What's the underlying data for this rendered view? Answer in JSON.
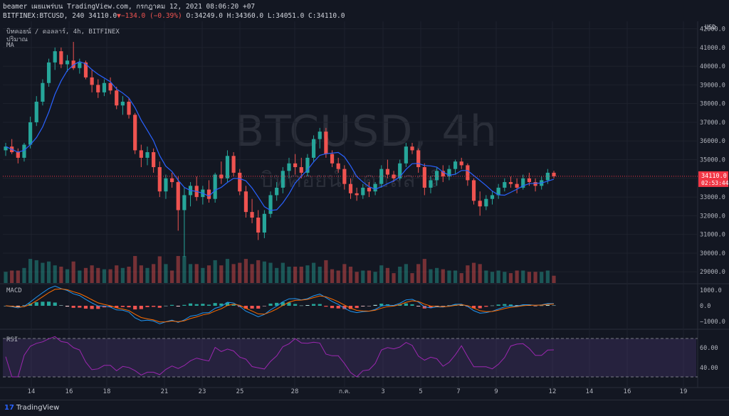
{
  "header": {
    "line1": "beamer เผยแพร่บน TradingView.com, กรกฎาคม 12, 2021 08:06:20 +07",
    "symbol": "BITFINEX:BTCUSD, 240",
    "last": "34110.0",
    "change_arrow": "▼",
    "change": "−134.0 (−0.39%)",
    "ohlc": "O:34249.0 H:34360.0 L:34051.0 C:34110.0"
  },
  "legend": {
    "title": "บิทคอยน์ / ดอลลาร์, 4h, BITFINEX",
    "volume": "ปริมาณ",
    "ma": "MA"
  },
  "watermark": {
    "main": "BTCUSD, 4h",
    "sub": "บิทคอยน์ / ดอลลาร์"
  },
  "price_axis": {
    "currency": "USD",
    "ticks": [
      "42000.0",
      "41000.0",
      "40000.0",
      "39000.0",
      "38000.0",
      "37000.0",
      "36000.0",
      "35000.0",
      "34000.0",
      "33000.0",
      "32000.0",
      "31000.0",
      "30000.0",
      "29000.0"
    ],
    "last_label": "34110.0",
    "countdown": "02:53:44"
  },
  "time_axis": {
    "labels": [
      "14",
      "16",
      "18",
      "21",
      "23",
      "25",
      "28",
      "ก.ค.",
      "3",
      "5",
      "7",
      "9",
      "12",
      "14",
      "16",
      "19"
    ]
  },
  "macd": {
    "label": "MACD",
    "ticks": [
      "1000.0",
      "0.0",
      "−1000.0"
    ]
  },
  "rsi": {
    "label": "RSI",
    "ticks": [
      "60.00",
      "40.00"
    ]
  },
  "footer": {
    "brand": "TradingView",
    "logo": "17"
  },
  "colors": {
    "up": "#26a69a",
    "down": "#ef5350",
    "ma": "#2962ff",
    "macd": "#2196f3",
    "signal": "#ff6d00",
    "rsi": "#7b1fa2",
    "rsi_band": "#7e57c2",
    "last_price": "#f23645"
  },
  "chart_data": {
    "type": "candlestick",
    "symbol": "BTCUSD",
    "interval": "4h",
    "ylim": [
      28400,
      42400
    ],
    "ohlc_sampled": [
      [
        35500,
        35900,
        35200,
        35700
      ],
      [
        35700,
        36100,
        35300,
        35400
      ],
      [
        35400,
        35600,
        34800,
        35100
      ],
      [
        35100,
        35900,
        34900,
        35800
      ],
      [
        35800,
        37300,
        35600,
        37000
      ],
      [
        37000,
        38400,
        36800,
        38100
      ],
      [
        38100,
        39300,
        37900,
        39100
      ],
      [
        39100,
        40400,
        38900,
        40200
      ],
      [
        40200,
        41000,
        39800,
        40800
      ],
      [
        40800,
        41000,
        39900,
        40100
      ],
      [
        40100,
        40600,
        39700,
        40300
      ],
      [
        40300,
        41300,
        39800,
        39900
      ],
      [
        39900,
        40400,
        39600,
        40200
      ],
      [
        40200,
        40300,
        39300,
        39400
      ],
      [
        39400,
        39800,
        38600,
        39000
      ],
      [
        39000,
        39300,
        38300,
        38600
      ],
      [
        38600,
        39300,
        38400,
        39100
      ],
      [
        39100,
        39400,
        38500,
        38700
      ],
      [
        38700,
        38900,
        37700,
        37900
      ],
      [
        37900,
        38400,
        37400,
        38100
      ],
      [
        38100,
        38300,
        37200,
        37400
      ],
      [
        37400,
        37500,
        35300,
        35500
      ],
      [
        35500,
        35800,
        34600,
        35100
      ],
      [
        35100,
        35700,
        34700,
        35400
      ],
      [
        35400,
        35600,
        34300,
        34600
      ],
      [
        34600,
        34900,
        33000,
        33300
      ],
      [
        33300,
        34200,
        32900,
        34000
      ],
      [
        34000,
        34300,
        33500,
        33800
      ],
      [
        33800,
        34100,
        31200,
        32300
      ],
      [
        32300,
        33500,
        29800,
        33100
      ],
      [
        33100,
        33800,
        32500,
        33600
      ],
      [
        33600,
        34100,
        32800,
        33000
      ],
      [
        33000,
        33600,
        32600,
        33400
      ],
      [
        33400,
        33900,
        32700,
        32900
      ],
      [
        32900,
        34300,
        32700,
        34200
      ],
      [
        34200,
        34900,
        33700,
        34000
      ],
      [
        34000,
        35500,
        33800,
        35200
      ],
      [
        35200,
        35400,
        34100,
        34300
      ],
      [
        34300,
        34500,
        33100,
        33300
      ],
      [
        33300,
        33600,
        31900,
        32200
      ],
      [
        32200,
        32900,
        31600,
        31900
      ],
      [
        31900,
        32300,
        30700,
        31100
      ],
      [
        31100,
        32300,
        30800,
        32100
      ],
      [
        32100,
        33300,
        31900,
        33100
      ],
      [
        33100,
        33800,
        32800,
        33500
      ],
      [
        33500,
        34600,
        33200,
        34400
      ],
      [
        34400,
        35100,
        34000,
        34800
      ],
      [
        34800,
        35300,
        34200,
        34600
      ],
      [
        34600,
        35100,
        34000,
        34300
      ],
      [
        34300,
        35300,
        34100,
        35100
      ],
      [
        35100,
        36300,
        34900,
        36100
      ],
      [
        36100,
        36700,
        35600,
        36500
      ],
      [
        36500,
        36700,
        35100,
        35300
      ],
      [
        35300,
        35500,
        34600,
        34800
      ],
      [
        34800,
        35100,
        34300,
        34500
      ],
      [
        34500,
        34700,
        33400,
        33700
      ],
      [
        33700,
        34000,
        32900,
        33200
      ],
      [
        33200,
        33500,
        32800,
        33100
      ],
      [
        33100,
        33700,
        32900,
        33500
      ],
      [
        33500,
        33800,
        33000,
        33300
      ],
      [
        33300,
        33800,
        33100,
        33700
      ],
      [
        33700,
        34700,
        33500,
        34500
      ],
      [
        34500,
        35000,
        34000,
        34200
      ],
      [
        34200,
        34400,
        33800,
        34000
      ],
      [
        34000,
        35000,
        33900,
        34800
      ],
      [
        34800,
        35900,
        34600,
        35700
      ],
      [
        35700,
        35900,
        35300,
        35500
      ],
      [
        35500,
        35600,
        34300,
        34600
      ],
      [
        34600,
        34800,
        33100,
        33500
      ],
      [
        33500,
        34100,
        33200,
        33900
      ],
      [
        33900,
        34600,
        33600,
        34400
      ],
      [
        34400,
        34700,
        33800,
        34100
      ],
      [
        34100,
        34700,
        33900,
        34500
      ],
      [
        34500,
        35000,
        34200,
        34900
      ],
      [
        34900,
        35100,
        34500,
        34700
      ],
      [
        34700,
        34800,
        33600,
        33900
      ],
      [
        33900,
        34000,
        32600,
        32800
      ],
      [
        32800,
        33300,
        32000,
        32500
      ],
      [
        32500,
        33100,
        32300,
        32900
      ],
      [
        32900,
        33300,
        32600,
        33100
      ],
      [
        33100,
        33700,
        32900,
        33500
      ],
      [
        33500,
        34000,
        33300,
        33800
      ],
      [
        33800,
        34100,
        33500,
        33700
      ],
      [
        33700,
        34000,
        33200,
        33500
      ],
      [
        33500,
        34200,
        33400,
        34000
      ],
      [
        34000,
        34300,
        33600,
        33800
      ],
      [
        33800,
        34000,
        33300,
        33600
      ],
      [
        33600,
        34100,
        33400,
        33900
      ],
      [
        33900,
        34500,
        33700,
        34300
      ],
      [
        34300,
        34400,
        34000,
        34110
      ]
    ],
    "last_price": 34110.0
  }
}
